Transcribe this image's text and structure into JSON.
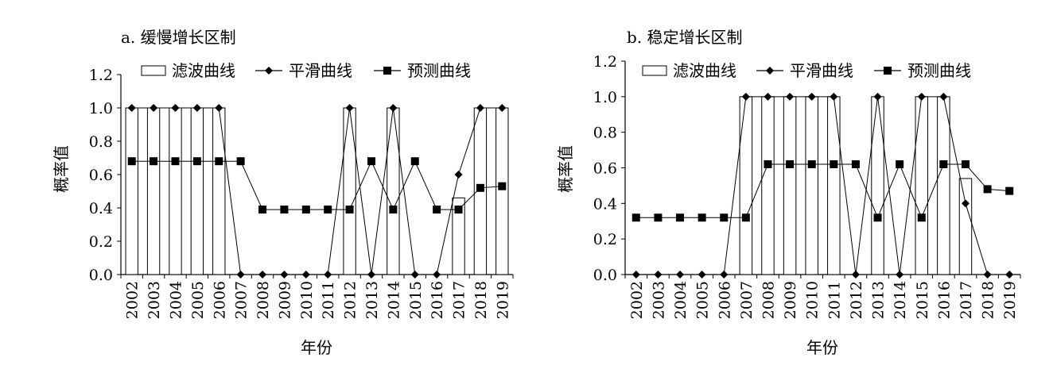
{
  "chart_data": [
    {
      "type": "bar",
      "title": "a. 缓慢增长区制",
      "xlabel": "年份",
      "ylabel": "概率值",
      "ylim": [
        0,
        1.2
      ],
      "yticks": [
        "0.0",
        "0.2",
        "0.4",
        "0.6",
        "0.8",
        "1.0",
        "1.2"
      ],
      "categories": [
        "2002",
        "2003",
        "2004",
        "2005",
        "2006",
        "2007",
        "2008",
        "2009",
        "2010",
        "2011",
        "2012",
        "2013",
        "2014",
        "2015",
        "2016",
        "2017",
        "2018",
        "2019"
      ],
      "legend_position": "top",
      "series": [
        {
          "name": "滤波曲线",
          "kind": "bar",
          "values": [
            1,
            1,
            1,
            1,
            1,
            0,
            0,
            0,
            0,
            0,
            1,
            0,
            1,
            0,
            0,
            0.46,
            1,
            1
          ]
        },
        {
          "name": "平滑曲线",
          "kind": "line-diamond",
          "values": [
            1,
            1,
            1,
            1,
            1,
            0,
            0,
            0,
            0,
            0,
            1,
            0,
            1,
            0,
            0,
            0.6,
            1,
            1
          ]
        },
        {
          "name": "预测曲线",
          "kind": "line-square",
          "values": [
            0.68,
            0.68,
            0.68,
            0.68,
            0.68,
            0.68,
            0.39,
            0.39,
            0.39,
            0.39,
            0.39,
            0.68,
            0.39,
            0.68,
            0.39,
            0.39,
            0.52,
            0.53
          ]
        }
      ]
    },
    {
      "type": "bar",
      "title": "b. 稳定增长区制",
      "xlabel": "年份",
      "ylabel": "概率值",
      "ylim": [
        0,
        1.2
      ],
      "yticks": [
        "0.0",
        "0.2",
        "0.4",
        "0.6",
        "0.8",
        "1.0",
        "1.2"
      ],
      "categories": [
        "2002",
        "2003",
        "2004",
        "2005",
        "2006",
        "2007",
        "2008",
        "2009",
        "2010",
        "2011",
        "2012",
        "2013",
        "2014",
        "2015",
        "2016",
        "2017",
        "2018",
        "2019"
      ],
      "legend_position": "top",
      "series": [
        {
          "name": "滤波曲线",
          "kind": "bar",
          "values": [
            0,
            0,
            0,
            0,
            0,
            1,
            1,
            1,
            1,
            1,
            0,
            1,
            0,
            1,
            1,
            0.54,
            0,
            0
          ]
        },
        {
          "name": "平滑曲线",
          "kind": "line-diamond",
          "values": [
            0,
            0,
            0,
            0,
            0,
            1,
            1,
            1,
            1,
            1,
            0,
            1,
            0,
            1,
            1,
            0.4,
            0,
            0
          ]
        },
        {
          "name": "预测曲线",
          "kind": "line-square",
          "values": [
            0.32,
            0.32,
            0.32,
            0.32,
            0.32,
            0.32,
            0.62,
            0.62,
            0.62,
            0.62,
            0.62,
            0.32,
            0.62,
            0.32,
            0.62,
            0.62,
            0.48,
            0.47
          ]
        }
      ]
    }
  ]
}
